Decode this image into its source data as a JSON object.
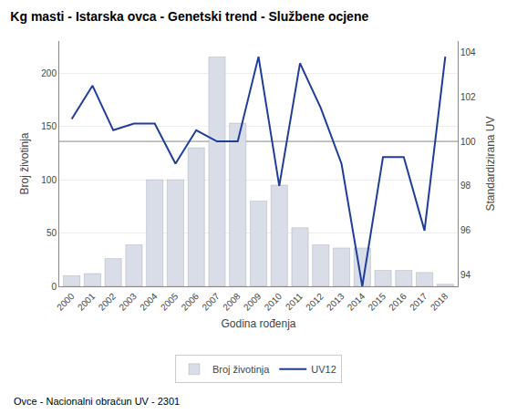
{
  "chart_data": {
    "type": "bar",
    "title": "Kg masti - Istarska ovca - Genetski trend - Službene ocjene",
    "xlabel": "Godina rođenja",
    "ylabel": "Broj životinja",
    "y2label": "Standardizirana UV",
    "annotations": [
      "Ovce - Nacionalni obračun UV - 2301"
    ],
    "x": [
      2000,
      2001,
      2002,
      2003,
      2004,
      2005,
      2006,
      2007,
      2008,
      2009,
      2010,
      2011,
      2012,
      2013,
      2014,
      2015,
      2016,
      2017,
      2018
    ],
    "series": [
      {
        "name": "Broj životinja",
        "type": "bar",
        "color": "#d8dde8",
        "values": [
          10,
          12,
          26,
          39,
          100,
          100,
          130,
          215,
          153,
          80,
          95,
          55,
          39,
          36,
          36,
          15,
          15,
          13,
          2
        ]
      },
      {
        "name": "UV12",
        "type": "line",
        "axis": "y2",
        "color": "#1f3d99",
        "values": [
          101.0,
          102.5,
          100.5,
          100.8,
          100.8,
          99.0,
          100.5,
          100.0,
          100.0,
          103.8,
          98.0,
          103.5,
          101.5,
          99.0,
          93.5,
          99.3,
          99.3,
          96.0,
          103.8
        ]
      }
    ],
    "hlines": [
      {
        "value": 100.0,
        "axis": "y2",
        "color": "#888888"
      }
    ],
    "xlim": [
      1999.4,
      2018.6
    ],
    "xticks": [
      2000,
      2001,
      2002,
      2003,
      2004,
      2005,
      2006,
      2007,
      2008,
      2009,
      2010,
      2011,
      2012,
      2013,
      2014,
      2015,
      2016,
      2017,
      2018
    ],
    "ylim": [
      0,
      230
    ],
    "yticks": [
      0,
      50,
      100,
      150,
      200
    ],
    "y2lim": [
      93.5,
      104.5
    ],
    "y2ticks": [
      94,
      96,
      98,
      100,
      102,
      104
    ],
    "grid": true,
    "legend": "bottom"
  }
}
